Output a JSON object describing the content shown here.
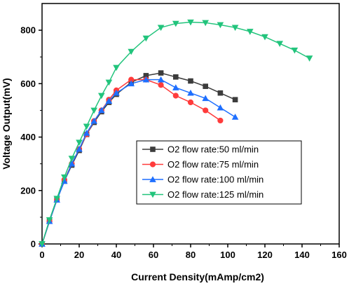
{
  "chart_data": {
    "type": "line",
    "xlabel": "Current Density(mAmp/cm2)",
    "ylabel": "Voltage Output(mV)",
    "xlim": [
      0,
      160
    ],
    "ylim": [
      0,
      900
    ],
    "xticks": [
      0,
      20,
      40,
      60,
      80,
      100,
      120,
      140,
      160
    ],
    "yticks": [
      0,
      200,
      400,
      600,
      800
    ],
    "grid": false,
    "legend_position": "center-right",
    "series": [
      {
        "name": "O2 flow rate:50 ml/min",
        "color": "#3c3c3c",
        "marker": "square",
        "x": [
          0,
          4,
          8,
          12,
          16,
          20,
          24,
          28,
          32,
          36,
          40,
          48,
          56,
          64,
          72,
          80,
          88,
          96,
          104
        ],
        "y": [
          0,
          85,
          165,
          235,
          295,
          350,
          410,
          455,
          495,
          530,
          560,
          605,
          630,
          640,
          625,
          610,
          590,
          565,
          540
        ]
      },
      {
        "name": "O2 flow rate:75 ml/min",
        "color": "#ff3b3b",
        "marker": "circle",
        "x": [
          0,
          4,
          8,
          12,
          16,
          20,
          24,
          28,
          32,
          36,
          40,
          48,
          56,
          64,
          72,
          80,
          88,
          96
        ],
        "y": [
          0,
          85,
          165,
          240,
          300,
          355,
          410,
          460,
          500,
          540,
          575,
          615,
          615,
          595,
          555,
          530,
          500,
          462
        ]
      },
      {
        "name": "O2 flow rate:100 ml/min",
        "color": "#1e6fff",
        "marker": "triangle-up",
        "x": [
          0,
          4,
          8,
          12,
          16,
          20,
          24,
          28,
          32,
          36,
          40,
          48,
          56,
          64,
          72,
          80,
          88,
          96,
          104
        ],
        "y": [
          0,
          85,
          165,
          235,
          300,
          355,
          415,
          460,
          500,
          535,
          565,
          600,
          615,
          615,
          585,
          565,
          545,
          510,
          475
        ]
      },
      {
        "name": "O2 flow rate:125 ml/min",
        "color": "#22c47c",
        "marker": "triangle-down",
        "x": [
          0,
          4,
          8,
          12,
          16,
          20,
          24,
          28,
          32,
          36,
          40,
          48,
          56,
          64,
          72,
          80,
          88,
          96,
          104,
          112,
          120,
          128,
          136,
          144
        ],
        "y": [
          0,
          90,
          170,
          250,
          320,
          380,
          440,
          500,
          555,
          605,
          660,
          720,
          770,
          810,
          825,
          830,
          828,
          820,
          810,
          795,
          775,
          750,
          725,
          695
        ]
      }
    ]
  }
}
